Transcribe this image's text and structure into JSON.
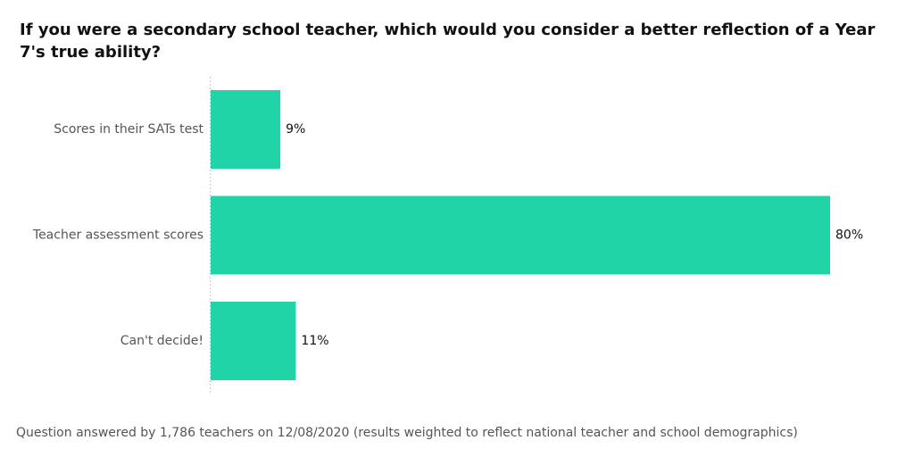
{
  "chart_data": {
    "type": "bar",
    "orientation": "horizontal",
    "title": "If you were a secondary school teacher, which would you consider a better reflection of a Year 7's true ability?",
    "categories": [
      "Scores in their SATs test",
      "Teacher assessment scores",
      "Can't decide!"
    ],
    "values": [
      9,
      80,
      11
    ],
    "value_labels": [
      "9%",
      "80%",
      "11%"
    ],
    "color": "#21d4a8",
    "footnote": "Question answered by 1,786 teachers on 12/08/2020 (results weighted to reflect national teacher and school demographics)"
  }
}
